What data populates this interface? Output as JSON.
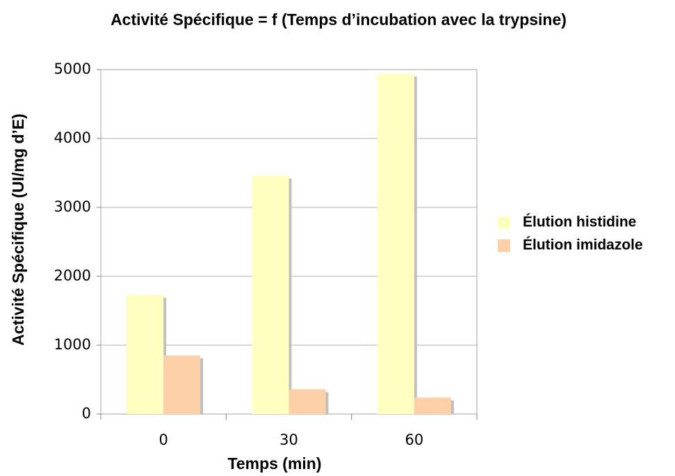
{
  "chart_data": {
    "type": "bar",
    "title": "Activité Spécifique = f (Temps d’incubation avec la trypsine)",
    "x_label": "Temps (min)",
    "y_label": "Activité Spécifique (UI/mg d’E)",
    "categories": [
      "0",
      "30",
      "60"
    ],
    "series": [
      {
        "name": "Élution histidine",
        "color": "#ffffc0",
        "values": [
          1730,
          3460,
          4940
        ]
      },
      {
        "name": "Élution imidazole",
        "color": "#ffd0a8",
        "values": [
          850,
          360,
          240
        ]
      }
    ],
    "ylim": [
      0,
      5000
    ],
    "yticks": [
      0,
      1000,
      2000,
      3000,
      4000,
      5000
    ],
    "grid": true,
    "legend": "right"
  }
}
